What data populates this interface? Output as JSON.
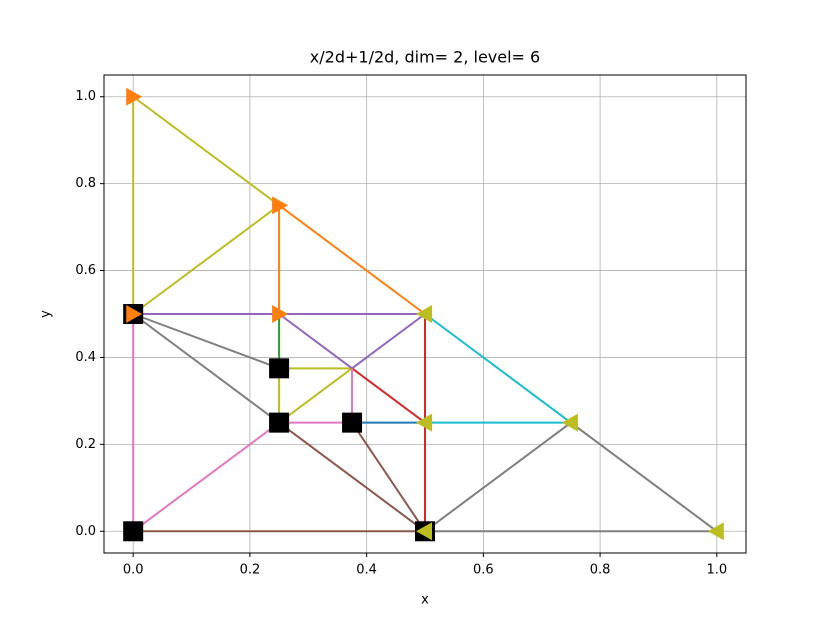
{
  "chart_data": {
    "type": "line",
    "title": "x/2d+1/2d, dim= 2, level= 6",
    "x_label": "x",
    "y_label": "y",
    "xlim": [
      -0.05,
      1.05
    ],
    "ylim": [
      -0.05,
      1.05
    ],
    "xticks": [
      {
        "value": 0,
        "label": "0.0"
      },
      0.2,
      0.4,
      0.6,
      0.8,
      {
        "value": 1,
        "label": "1.0"
      }
    ],
    "yticks": [
      {
        "value": 0,
        "label": "0.0"
      },
      0.2,
      0.4,
      0.6,
      0.8,
      {
        "value": 1,
        "label": "1.0"
      }
    ],
    "grid": true,
    "series": [
      {
        "color": "#bcbd22",
        "x": [
          0,
          0.25,
          null,
          0,
          0,
          null,
          0,
          0.25,
          null,
          0.25,
          0.375,
          null,
          0.25,
          0.375,
          null,
          0.25,
          0.25
        ],
        "values": [
          1,
          0.75,
          null,
          1,
          0.5,
          null,
          0.5,
          0.75,
          null,
          0.375,
          0.375,
          null,
          0.25,
          0.375,
          null,
          0.375,
          0.25
        ]
      },
      {
        "color": "#ff7f0e",
        "x": [
          0.25,
          0.5,
          null,
          0.25,
          0.25
        ],
        "values": [
          0.75,
          0.5,
          null,
          0.75,
          0.5
        ]
      },
      {
        "color": "#2ca02c",
        "x": [
          0.25,
          0.25
        ],
        "values": [
          0.5,
          0.375
        ]
      },
      {
        "color": "#9467bd",
        "x": [
          0,
          0.5,
          null,
          0.25,
          0.375,
          0.5
        ],
        "values": [
          0.5,
          0.5,
          null,
          0.5,
          0.375,
          0.5
        ]
      },
      {
        "color": "#7f7f7f",
        "x": [
          0,
          0.25,
          null,
          0,
          0.25,
          null,
          0.5,
          0.75,
          1,
          null,
          0.5,
          1
        ],
        "values": [
          0.5,
          0.375,
          null,
          0.5,
          0.25,
          null,
          0,
          0.25,
          0,
          null,
          0,
          0
        ]
      },
      {
        "color": "#17becf",
        "x": [
          0.5,
          0.75,
          null,
          0.5,
          0.75
        ],
        "values": [
          0.5,
          0.25,
          null,
          0.25,
          0.25
        ]
      },
      {
        "color": "#1f77b4",
        "x": [
          0.375,
          0.5
        ],
        "values": [
          0.25,
          0.25
        ]
      },
      {
        "color": "#d62728",
        "x": [
          0.5,
          0.5,
          null,
          0.375,
          0.5
        ],
        "values": [
          0.5,
          0,
          null,
          0.375,
          0.25
        ]
      },
      {
        "color": "#e377c2",
        "x": [
          0,
          0,
          null,
          0,
          0.25,
          0.375,
          0.375
        ],
        "values": [
          0.5,
          0,
          null,
          0,
          0.25,
          0.25,
          0.375
        ]
      },
      {
        "color": "#8c564b",
        "x": [
          0,
          0.5,
          null,
          0.25,
          0.5,
          null,
          0.375,
          0.5
        ],
        "values": [
          0,
          0,
          null,
          0.25,
          0,
          null,
          0.25,
          0
        ]
      },
      {
        "color": "#000000",
        "marker": "square",
        "line": false,
        "x": [
          0,
          0.25,
          0.25,
          0.375,
          0,
          0.5
        ],
        "values": [
          0.5,
          0.375,
          0.25,
          0.25,
          0,
          0
        ]
      },
      {
        "color": "#ff7f0e",
        "marker": "triangle-right",
        "line": false,
        "x": [
          0,
          0.25,
          0,
          0.25
        ],
        "values": [
          1,
          0.75,
          0.5,
          0.5
        ]
      },
      {
        "color": "#bcbd22",
        "marker": "triangle-left",
        "line": false,
        "x": [
          0.5,
          0.5,
          0.75,
          1,
          0.5
        ],
        "values": [
          0.5,
          0.25,
          0.25,
          0,
          0
        ]
      }
    ]
  }
}
